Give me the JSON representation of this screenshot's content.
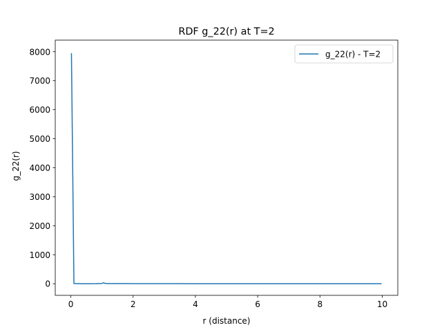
{
  "chart_data": {
    "type": "line",
    "title": "RDF g_22(r) at T=2",
    "xlabel": "r (distance)",
    "ylabel": "g_22(r)",
    "xlim": [
      -0.5,
      10.5
    ],
    "ylim": [
      -400,
      8400
    ],
    "xticks": [
      0,
      2,
      4,
      6,
      8,
      10
    ],
    "yticks": [
      0,
      1000,
      2000,
      3000,
      4000,
      5000,
      6000,
      7000,
      8000
    ],
    "grid": false,
    "legend_position": "top-right",
    "series": [
      {
        "name": "g_22(r) - T=2",
        "color": "#1f77b4",
        "x": [
          0.02,
          0.1,
          0.2,
          0.4,
          0.6,
          0.8,
          1.0,
          1.05,
          1.1,
          1.2,
          1.4,
          1.6,
          1.8,
          2.0,
          2.5,
          3.0,
          4.0,
          5.0,
          6.0,
          7.0,
          8.0,
          9.0,
          9.98
        ],
        "y": [
          7950,
          5,
          2,
          1,
          1,
          2,
          8,
          35,
          10,
          5,
          4,
          4,
          4,
          3,
          2,
          2,
          1,
          1,
          1,
          1,
          1,
          1,
          1
        ]
      }
    ]
  }
}
